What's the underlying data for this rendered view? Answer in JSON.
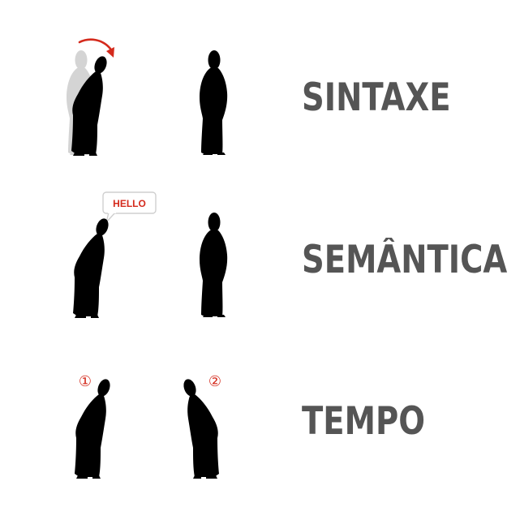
{
  "rows": [
    {
      "label": "SINTAXE"
    },
    {
      "label": "SEMÂNTICA"
    },
    {
      "label": "TEMPO"
    }
  ],
  "speech_bubble": {
    "text": "HELLO"
  },
  "order_marks": {
    "first": "①",
    "second": "②"
  },
  "colors": {
    "figure": "#000000",
    "ghost": "#d4d4d4",
    "accent": "#d42a1c",
    "label": "#555555",
    "bubble_border": "#cfcfcf"
  }
}
